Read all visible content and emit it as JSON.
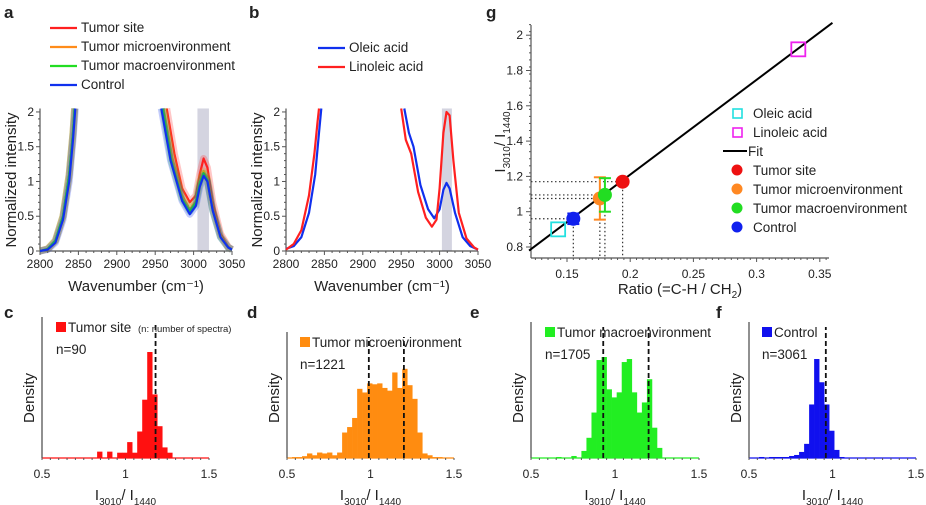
{
  "panels": {
    "a": "a",
    "b": "b",
    "c": "c",
    "d": "d",
    "e": "e",
    "f": "f",
    "g": "g"
  },
  "chart_data": [
    {
      "id": "a",
      "type": "line",
      "xlabel": "Wavenumber (cm⁻¹)",
      "ylabel": "Normalized intensity",
      "xlim": [
        2800,
        3050
      ],
      "ylim": [
        0,
        2.1
      ],
      "xticks": [
        "2800",
        "2850",
        "2900",
        "2950",
        "3000",
        "3050"
      ],
      "yticks": [
        "0",
        "0.5",
        "1",
        "1.5",
        "2"
      ],
      "highlight_band": [
        3005,
        3020
      ],
      "series": [
        {
          "name": "Tumor site",
          "color": "#ff2020",
          "points": [
            [
              2800,
              0
            ],
            [
              2810,
              0.03
            ],
            [
              2820,
              0.15
            ],
            [
              2830,
              0.5
            ],
            [
              2838,
              1.1
            ],
            [
              2843,
              1.7
            ],
            [
              2845,
              2.1
            ],
            [
              2965,
              2.1
            ],
            [
              2975,
              1.4
            ],
            [
              2985,
              0.9
            ],
            [
              2995,
              0.7
            ],
            [
              3003,
              0.8
            ],
            [
              3008,
              1.1
            ],
            [
              3013,
              1.33
            ],
            [
              3018,
              1.2
            ],
            [
              3025,
              0.7
            ],
            [
              3035,
              0.25
            ],
            [
              3045,
              0.06
            ],
            [
              3050,
              0.02
            ]
          ]
        },
        {
          "name": "Tumor microenvironment",
          "color": "#ff8c1a",
          "points": [
            [
              2800,
              0
            ],
            [
              2810,
              0.03
            ],
            [
              2820,
              0.15
            ],
            [
              2830,
              0.5
            ],
            [
              2838,
              1.1
            ],
            [
              2843,
              1.7
            ],
            [
              2845,
              2.1
            ],
            [
              2961,
              2.1
            ],
            [
              2972,
              1.35
            ],
            [
              2985,
              0.8
            ],
            [
              2995,
              0.6
            ],
            [
              3003,
              0.72
            ],
            [
              3008,
              1.0
            ],
            [
              3013,
              1.15
            ],
            [
              3018,
              1.05
            ],
            [
              3025,
              0.6
            ],
            [
              3035,
              0.22
            ],
            [
              3045,
              0.05
            ],
            [
              3050,
              0.02
            ]
          ]
        },
        {
          "name": "Tumor macroenvironment",
          "color": "#22dd22",
          "points": [
            [
              2800,
              0
            ],
            [
              2810,
              0.03
            ],
            [
              2820,
              0.15
            ],
            [
              2830,
              0.5
            ],
            [
              2838,
              1.1
            ],
            [
              2843,
              1.7
            ],
            [
              2845,
              2.1
            ],
            [
              2960,
              2.1
            ],
            [
              2971,
              1.3
            ],
            [
              2985,
              0.75
            ],
            [
              2995,
              0.57
            ],
            [
              3003,
              0.7
            ],
            [
              3008,
              0.98
            ],
            [
              3013,
              1.12
            ],
            [
              3018,
              1.02
            ],
            [
              3025,
              0.58
            ],
            [
              3035,
              0.2
            ],
            [
              3045,
              0.05
            ],
            [
              3050,
              0.02
            ]
          ]
        },
        {
          "name": "Control",
          "color": "#1030ee",
          "points": [
            [
              2800,
              0
            ],
            [
              2810,
              0.02
            ],
            [
              2820,
              0.12
            ],
            [
              2830,
              0.45
            ],
            [
              2838,
              1.0
            ],
            [
              2843,
              1.6
            ],
            [
              2846,
              2.1
            ],
            [
              2958,
              2.1
            ],
            [
              2970,
              1.3
            ],
            [
              2985,
              0.72
            ],
            [
              2995,
              0.53
            ],
            [
              3003,
              0.65
            ],
            [
              3008,
              0.92
            ],
            [
              3013,
              1.08
            ],
            [
              3018,
              1.0
            ],
            [
              3025,
              0.58
            ],
            [
              3035,
              0.2
            ],
            [
              3045,
              0.05
            ],
            [
              3050,
              0.02
            ]
          ]
        }
      ]
    },
    {
      "id": "b",
      "type": "line",
      "xlabel": "Wavenumber (cm⁻¹)",
      "ylabel": "Normalized intensity",
      "xlim": [
        2800,
        3050
      ],
      "ylim": [
        0,
        2.1
      ],
      "xticks": [
        "2800",
        "2850",
        "2900",
        "2950",
        "3000",
        "3050"
      ],
      "yticks": [
        "0",
        "0.5",
        "1",
        "1.5",
        "2"
      ],
      "highlight_band": [
        3003,
        3016
      ],
      "series": [
        {
          "name": "Oleic acid",
          "color": "#1030ee",
          "points": [
            [
              2800,
              0.03
            ],
            [
              2810,
              0.07
            ],
            [
              2820,
              0.2
            ],
            [
              2830,
              0.55
            ],
            [
              2838,
              1.1
            ],
            [
              2843,
              1.7
            ],
            [
              2846,
              2.1
            ],
            [
              2954,
              2.1
            ],
            [
              2960,
              1.7
            ],
            [
              2966,
              1.5
            ],
            [
              2975,
              0.95
            ],
            [
              2985,
              0.6
            ],
            [
              2993,
              0.47
            ],
            [
              3000,
              0.6
            ],
            [
              3005,
              0.88
            ],
            [
              3009,
              0.98
            ],
            [
              3013,
              0.9
            ],
            [
              3020,
              0.55
            ],
            [
              3030,
              0.2
            ],
            [
              3040,
              0.07
            ],
            [
              3050,
              0.02
            ]
          ]
        },
        {
          "name": "Linoleic acid",
          "color": "#ff2020",
          "points": [
            [
              2800,
              0.02
            ],
            [
              2810,
              0.1
            ],
            [
              2820,
              0.3
            ],
            [
              2830,
              0.8
            ],
            [
              2837,
              1.4
            ],
            [
              2841,
              1.85
            ],
            [
              2843,
              2.1
            ],
            [
              2950,
              2.1
            ],
            [
              2956,
              1.6
            ],
            [
              2963,
              1.4
            ],
            [
              2972,
              0.85
            ],
            [
              2982,
              0.48
            ],
            [
              2990,
              0.35
            ],
            [
              2996,
              0.45
            ],
            [
              3000,
              0.9
            ],
            [
              3005,
              1.7
            ],
            [
              3009,
              2.0
            ],
            [
              3013,
              1.95
            ],
            [
              3018,
              1.3
            ],
            [
              3025,
              0.55
            ],
            [
              3035,
              0.18
            ],
            [
              3045,
              0.05
            ],
            [
              3050,
              0.02
            ]
          ]
        }
      ]
    },
    {
      "id": "g",
      "type": "scatter",
      "xlabel": "Ratio (=C-H / CH₂)",
      "ylabel": "I3010 / I1440",
      "xlim": [
        0.12,
        0.36
      ],
      "ylim": [
        0.78,
        2.08
      ],
      "xticks": [
        "0.15",
        "0.2",
        "0.25",
        "0.3",
        "0.35"
      ],
      "yticks": [
        "0.8",
        "1",
        "1.2",
        "1.4",
        "1.6",
        "1.8",
        "2"
      ],
      "fit": {
        "name": "Fit",
        "color": "#000000",
        "x": [
          0.12,
          0.36
        ],
        "y": [
          0.78,
          2.07
        ]
      },
      "reference_points": [
        {
          "name": "Oleic acid",
          "color": "#22e0e0",
          "x": 0.143,
          "y": 0.9,
          "marker": "open-square"
        },
        {
          "name": "Linoleic acid",
          "color": "#ee22ee",
          "x": 0.333,
          "y": 1.92,
          "marker": "open-square"
        }
      ],
      "groups": [
        {
          "name": "Tumor site",
          "color": "#ee1111",
          "x": 0.194,
          "y": 1.17,
          "yerr": 0.0
        },
        {
          "name": "Tumor microenvironment",
          "color": "#ff8822",
          "x": 0.176,
          "y": 1.075,
          "yerr": 0.12
        },
        {
          "name": "Tumor macroenvironment",
          "color": "#22dd22",
          "x": 0.18,
          "y": 1.095,
          "yerr": 0.095
        },
        {
          "name": "Control",
          "color": "#1020ee",
          "x": 0.155,
          "y": 0.96,
          "yerr": 0.03
        }
      ]
    },
    {
      "id": "c",
      "type": "bar",
      "legend": "Tumor site",
      "note": "(n: number of spectra)",
      "n_label": "n=90",
      "color": "#ff1010",
      "xlabel": "I3010 / I1440",
      "ylabel": "Density",
      "xlim": [
        0.5,
        1.5
      ],
      "xticks": [
        "0.5",
        "1",
        "1.5"
      ],
      "bin_start": 0.5,
      "bin_width": 0.03,
      "values": [
        0,
        0,
        0,
        0,
        0,
        0,
        0,
        0,
        0,
        0,
        0,
        0.06,
        0,
        0.06,
        0,
        0.05,
        0.05,
        0.15,
        0.05,
        0.25,
        0.55,
        1.0,
        0.6,
        0.3,
        0.1,
        0.05,
        0,
        0,
        0,
        0,
        0,
        0,
        0,
        0
      ],
      "medians": [
        1.18
      ]
    },
    {
      "id": "d",
      "type": "bar",
      "legend": "Tumor microenvironment",
      "n_label": "n=1221",
      "color": "#ff8c10",
      "xlabel": "I3010 / I1440",
      "ylabel": "Density",
      "xlim": [
        0.5,
        1.5
      ],
      "xticks": [
        "0.5",
        "1",
        "1.5"
      ],
      "bin_start": 0.5,
      "bin_width": 0.03,
      "values": [
        0,
        0.01,
        0.01,
        0.02,
        0.05,
        0.03,
        0.06,
        0.05,
        0.06,
        0.03,
        0.06,
        0.28,
        0.34,
        0.44,
        0.76,
        0.72,
        0.82,
        0.81,
        0.82,
        0.77,
        0.74,
        0.94,
        0.77,
        0.98,
        0.8,
        0.65,
        0.28,
        0.05,
        0.03,
        0.01,
        0.01,
        0,
        0,
        0
      ],
      "medians": [
        0.99,
        1.2
      ]
    },
    {
      "id": "e",
      "type": "bar",
      "legend": "Tumor macroenvironment",
      "n_label": "n=1705",
      "color": "#22ee22",
      "xlabel": "I3010 / I1440",
      "ylabel": "Density",
      "xlim": [
        0.5,
        1.5
      ],
      "xticks": [
        "0.5",
        "1",
        "1.5"
      ],
      "bin_start": 0.5,
      "bin_width": 0.03,
      "values": [
        0,
        0,
        0,
        0,
        0,
        0.01,
        0,
        0,
        0.02,
        0,
        0.07,
        0.2,
        0.45,
        0.97,
        1.0,
        0.68,
        0.6,
        0.65,
        0.95,
        0.98,
        0.65,
        0.45,
        0.55,
        0.78,
        0.3,
        0.1,
        0,
        0,
        0,
        0,
        0,
        0,
        0,
        0
      ],
      "medians": [
        0.93,
        1.2
      ]
    },
    {
      "id": "f",
      "type": "bar",
      "legend": "Control",
      "n_label": "n=3061",
      "color": "#1010ee",
      "xlabel": "I3010 / I1440",
      "ylabel": "Density",
      "xlim": [
        0.5,
        1.5
      ],
      "xticks": [
        "0.5",
        "1",
        "1.5"
      ],
      "bin_start": 0.5,
      "bin_width": 0.03,
      "values": [
        0,
        0,
        0.01,
        0,
        0.01,
        0.01,
        0.01,
        0.01,
        0.02,
        0.03,
        0.06,
        0.14,
        0.53,
        0.98,
        0.75,
        0.53,
        0.27,
        0.08,
        0.01,
        0,
        0,
        0,
        0,
        0,
        0,
        0,
        0,
        0,
        0,
        0,
        0,
        0,
        0,
        0
      ],
      "medians": [
        0.96
      ]
    }
  ]
}
